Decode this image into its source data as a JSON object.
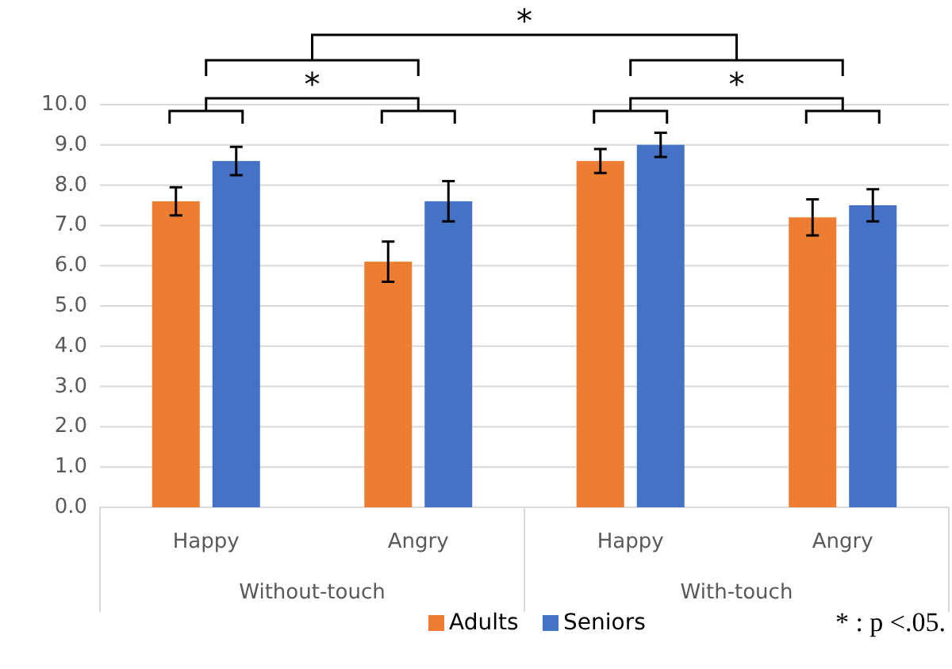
{
  "chart_data": {
    "type": "bar",
    "categories": [
      "Happy",
      "Angry",
      "Happy",
      "Angry"
    ],
    "series": [
      {
        "name": "Adults",
        "color": "#ed7d31",
        "values": [
          7.6,
          6.1,
          8.6,
          7.2
        ],
        "errors": [
          0.35,
          0.5,
          0.3,
          0.45
        ]
      },
      {
        "name": "Seniors",
        "color": "#4472c4",
        "values": [
          8.6,
          7.6,
          9.0,
          7.5
        ],
        "errors": [
          0.35,
          0.5,
          0.3,
          0.4
        ]
      }
    ],
    "ylim": [
      0,
      10
    ],
    "yticks": [
      {
        "value": 0,
        "label": "0.0"
      },
      {
        "value": 1,
        "label": "1.0"
      },
      {
        "value": 2,
        "label": "2.0"
      },
      {
        "value": 3,
        "label": "3.0"
      },
      {
        "value": 4,
        "label": "4.0"
      },
      {
        "value": 5,
        "label": "5.0"
      },
      {
        "value": 6,
        "label": "6.0"
      },
      {
        "value": 7,
        "label": "7.0"
      },
      {
        "value": 8,
        "label": "8.0"
      },
      {
        "value": 9,
        "label": "9.0"
      },
      {
        "value": 10,
        "label": "10.0"
      }
    ],
    "grid": "y",
    "legend": "bottom",
    "annotations": [
      "Without-touch",
      "With-touch",
      "*",
      "*",
      "*",
      "* : p <.05."
    ]
  }
}
